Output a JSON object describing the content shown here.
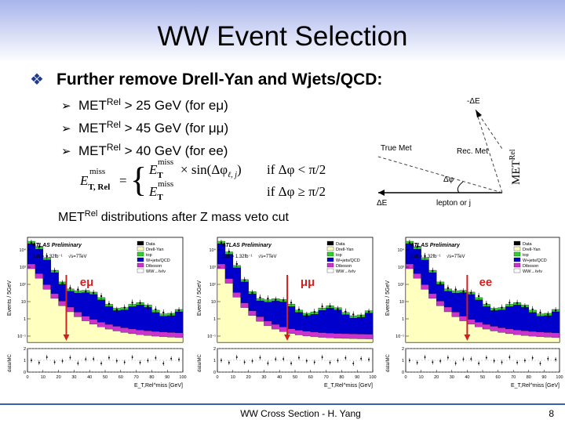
{
  "header": {
    "title": "WW Event Selection"
  },
  "bullet": {
    "marker": "❖",
    "text": "Further remove Drell-Yan and Wjets/QCD:"
  },
  "cuts": [
    {
      "marker": "➢",
      "prefix": "MET",
      "sup": "Rel",
      "text": " > 25 GeV (for eμ)"
    },
    {
      "marker": "➢",
      "prefix": "MET",
      "sup": "Rel",
      "text": " > 45 GeV (for μμ)"
    },
    {
      "marker": "➢",
      "prefix": "MET",
      "sup": "Rel",
      "text": " > 40 GeV (for ee)"
    }
  ],
  "formula": {
    "lhs": {
      "base": "E",
      "sub": "T, Rel",
      "sup": "miss"
    },
    "eq": "=",
    "case1": {
      "base": "E",
      "sub": "T",
      "sup": "miss",
      "rest": "× sin(Δφ",
      "rest_sub": "ℓ, j",
      "close": ")",
      "cond": "if Δφ < π/2"
    },
    "case2": {
      "base": "E",
      "sub": "T",
      "sup": "miss",
      "cond": "if Δφ ≥ π/2"
    }
  },
  "diagram": {
    "minus_de": "-ΔE",
    "true_met": "True Met",
    "rec_met": "Rec. Met",
    "dphi": "Δφ",
    "de": "ΔE",
    "lepton": "lepton or j",
    "met_rel": "MET",
    "met_rel_sup": "Rel"
  },
  "caption": {
    "prefix": "MET",
    "sup": "Rel",
    "text": " distributions after Z mass veto cut"
  },
  "plots": [
    {
      "channel": "eμ"
    },
    {
      "channel": "μμ"
    },
    {
      "channel": "ee"
    }
  ],
  "plot_common": {
    "atlas": "ATLAS Preliminary",
    "lumi": "∫Ldt = 1.32fb⁻¹",
    "energy": "√s=7TeV",
    "legend": [
      {
        "name": "Data",
        "color": "#000000"
      },
      {
        "name": "Drell-Yan",
        "color": "#ffffc0"
      },
      {
        "name": "top",
        "color": "#33cc33"
      },
      {
        "name": "W+jets/QCD",
        "color": "#0000cc"
      },
      {
        "name": "Diboson",
        "color": "#cc33cc"
      },
      {
        "name": "WW→ℓνℓν",
        "color": "#ffffff"
      }
    ],
    "y_label": "Events / 5GeV",
    "ratio_label": "data/MC",
    "x_label": "E_T,Rel^miss [GeV]",
    "xticks": [
      0,
      10,
      20,
      30,
      40,
      50,
      60,
      70,
      80,
      90,
      100
    ],
    "yticks": [
      "10⁻¹",
      "1",
      "10",
      "10²",
      "10³",
      "10⁴"
    ],
    "ratio_ticks": [
      0,
      1,
      2
    ]
  },
  "footer": {
    "text": "WW Cross Section - H. Yang",
    "page": "8"
  }
}
